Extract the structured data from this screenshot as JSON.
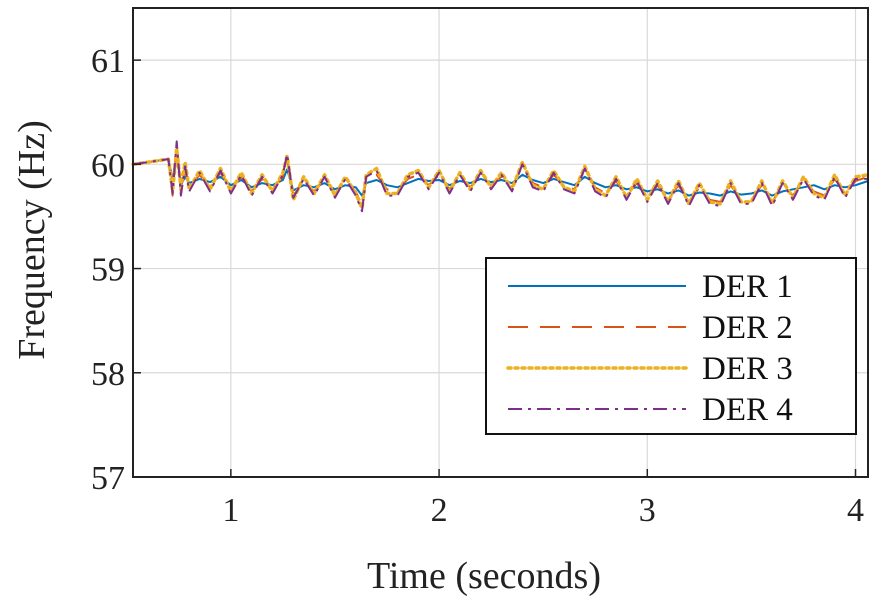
{
  "chart_data": {
    "type": "line",
    "title": "",
    "xlabel": "Time (seconds)",
    "ylabel": "Frequency (Hz)",
    "xlim": [
      0.53,
      4.06
    ],
    "ylim": [
      57,
      61.5
    ],
    "xticks": [
      1,
      2,
      3,
      4
    ],
    "yticks": [
      57,
      58,
      59,
      60,
      61
    ],
    "grid": true,
    "legend_position": "bottom-right",
    "series": [
      {
        "name": "DER 1",
        "color": "#0072BD",
        "dash": "solid",
        "x": [
          0.53,
          0.6,
          0.7,
          0.72,
          0.74,
          0.76,
          0.78,
          0.8,
          0.85,
          0.9,
          0.95,
          1.0,
          1.05,
          1.1,
          1.15,
          1.2,
          1.25,
          1.27,
          1.3,
          1.35,
          1.4,
          1.45,
          1.5,
          1.55,
          1.6,
          1.63,
          1.65,
          1.7,
          1.75,
          1.8,
          1.85,
          1.9,
          1.95,
          2.0,
          2.05,
          2.1,
          2.15,
          2.2,
          2.25,
          2.3,
          2.35,
          2.4,
          2.45,
          2.5,
          2.55,
          2.6,
          2.65,
          2.7,
          2.75,
          2.8,
          2.85,
          2.9,
          2.95,
          3.0,
          3.05,
          3.1,
          3.15,
          3.2,
          3.25,
          3.3,
          3.35,
          3.4,
          3.45,
          3.5,
          3.55,
          3.6,
          3.65,
          3.7,
          3.75,
          3.8,
          3.85,
          3.9,
          3.95,
          4.0,
          4.06
        ],
        "y": [
          60.0,
          60.02,
          60.05,
          59.85,
          60.12,
          59.8,
          59.88,
          59.82,
          59.86,
          59.83,
          59.88,
          59.8,
          59.85,
          59.78,
          59.82,
          59.8,
          59.85,
          59.95,
          59.75,
          59.8,
          59.78,
          59.82,
          59.76,
          59.8,
          59.78,
          59.7,
          59.82,
          59.85,
          59.8,
          59.78,
          59.82,
          59.86,
          59.84,
          59.85,
          59.8,
          59.84,
          59.82,
          59.86,
          59.83,
          59.85,
          59.82,
          59.9,
          59.85,
          59.82,
          59.86,
          59.83,
          59.8,
          59.88,
          59.82,
          59.78,
          59.8,
          59.76,
          59.78,
          59.74,
          59.76,
          59.72,
          59.75,
          59.7,
          59.73,
          59.72,
          59.7,
          59.74,
          59.71,
          59.72,
          59.75,
          59.7,
          59.74,
          59.76,
          59.78,
          59.8,
          59.76,
          59.8,
          59.78,
          59.8,
          59.84
        ]
      },
      {
        "name": "DER 2",
        "color": "#D95319",
        "dash": "dashed",
        "x": [
          0.53,
          0.6,
          0.7,
          0.72,
          0.74,
          0.76,
          0.78,
          0.8,
          0.85,
          0.9,
          0.95,
          1.0,
          1.05,
          1.1,
          1.15,
          1.2,
          1.25,
          1.27,
          1.3,
          1.35,
          1.4,
          1.45,
          1.5,
          1.55,
          1.6,
          1.63,
          1.65,
          1.7,
          1.75,
          1.8,
          1.85,
          1.9,
          1.95,
          2.0,
          2.05,
          2.1,
          2.15,
          2.2,
          2.25,
          2.3,
          2.35,
          2.4,
          2.45,
          2.5,
          2.55,
          2.6,
          2.65,
          2.7,
          2.75,
          2.8,
          2.85,
          2.9,
          2.95,
          3.0,
          3.05,
          3.1,
          3.15,
          3.2,
          3.25,
          3.3,
          3.35,
          3.4,
          3.45,
          3.5,
          3.55,
          3.6,
          3.65,
          3.7,
          3.75,
          3.8,
          3.85,
          3.9,
          3.95,
          4.0,
          4.06
        ],
        "y": [
          60.0,
          60.02,
          60.05,
          59.7,
          60.2,
          59.72,
          59.95,
          59.78,
          59.9,
          59.78,
          59.92,
          59.76,
          59.88,
          59.74,
          59.86,
          59.76,
          59.88,
          60.05,
          59.7,
          59.84,
          59.74,
          59.86,
          59.72,
          59.84,
          59.74,
          59.6,
          59.86,
          59.9,
          59.76,
          59.74,
          59.86,
          59.9,
          59.8,
          59.9,
          59.76,
          59.88,
          59.78,
          59.9,
          59.8,
          59.88,
          59.78,
          59.98,
          59.82,
          59.78,
          59.9,
          59.8,
          59.76,
          59.94,
          59.78,
          59.72,
          59.84,
          59.7,
          59.82,
          59.68,
          59.8,
          59.66,
          59.8,
          59.64,
          59.78,
          59.66,
          59.64,
          59.8,
          59.66,
          59.66,
          59.8,
          59.64,
          59.8,
          59.7,
          59.84,
          59.74,
          59.7,
          59.86,
          59.72,
          59.84,
          59.88
        ]
      },
      {
        "name": "DER 3",
        "color": "#EDB120",
        "dash": "dotted",
        "x": [
          0.53,
          0.6,
          0.7,
          0.72,
          0.74,
          0.76,
          0.78,
          0.8,
          0.85,
          0.9,
          0.95,
          1.0,
          1.05,
          1.1,
          1.15,
          1.2,
          1.25,
          1.27,
          1.3,
          1.35,
          1.4,
          1.45,
          1.5,
          1.55,
          1.6,
          1.63,
          1.65,
          1.7,
          1.75,
          1.8,
          1.85,
          1.9,
          1.95,
          2.0,
          2.05,
          2.1,
          2.15,
          2.2,
          2.25,
          2.3,
          2.35,
          2.4,
          2.45,
          2.5,
          2.55,
          2.6,
          2.65,
          2.7,
          2.75,
          2.8,
          2.85,
          2.9,
          2.95,
          3.0,
          3.05,
          3.1,
          3.15,
          3.2,
          3.25,
          3.3,
          3.35,
          3.4,
          3.45,
          3.5,
          3.55,
          3.6,
          3.65,
          3.7,
          3.75,
          3.8,
          3.85,
          3.9,
          3.95,
          4.0,
          4.06
        ],
        "y": [
          60.0,
          60.02,
          60.05,
          59.75,
          60.15,
          59.78,
          60.02,
          59.76,
          59.94,
          59.76,
          59.96,
          59.74,
          59.92,
          59.72,
          59.9,
          59.74,
          59.92,
          60.08,
          59.66,
          59.88,
          59.72,
          59.9,
          59.7,
          59.88,
          59.72,
          59.58,
          59.9,
          59.96,
          59.72,
          59.72,
          59.9,
          59.94,
          59.78,
          59.94,
          59.74,
          59.92,
          59.76,
          59.94,
          59.78,
          59.92,
          59.76,
          60.02,
          59.8,
          59.76,
          59.94,
          59.78,
          59.74,
          59.98,
          59.76,
          59.7,
          59.88,
          59.68,
          59.86,
          59.66,
          59.84,
          59.64,
          59.84,
          59.62,
          59.82,
          59.64,
          59.62,
          59.84,
          59.64,
          59.64,
          59.84,
          59.62,
          59.84,
          59.68,
          59.88,
          59.72,
          59.68,
          59.9,
          59.7,
          59.88,
          59.9
        ]
      },
      {
        "name": "DER 4",
        "color": "#7E2F8E",
        "dash": "dashdot",
        "x": [
          0.53,
          0.6,
          0.7,
          0.72,
          0.74,
          0.76,
          0.78,
          0.8,
          0.85,
          0.9,
          0.95,
          1.0,
          1.05,
          1.1,
          1.15,
          1.2,
          1.25,
          1.27,
          1.3,
          1.35,
          1.4,
          1.45,
          1.5,
          1.55,
          1.6,
          1.63,
          1.65,
          1.7,
          1.75,
          1.8,
          1.85,
          1.9,
          1.95,
          2.0,
          2.05,
          2.1,
          2.15,
          2.2,
          2.25,
          2.3,
          2.35,
          2.4,
          2.45,
          2.5,
          2.55,
          2.6,
          2.65,
          2.7,
          2.75,
          2.8,
          2.85,
          2.9,
          2.95,
          3.0,
          3.05,
          3.1,
          3.15,
          3.2,
          3.25,
          3.3,
          3.35,
          3.4,
          3.45,
          3.5,
          3.55,
          3.6,
          3.65,
          3.7,
          3.75,
          3.8,
          3.85,
          3.9,
          3.95,
          4.0,
          4.06
        ],
        "y": [
          60.0,
          60.02,
          60.05,
          59.72,
          60.22,
          59.7,
          59.98,
          59.74,
          59.92,
          59.74,
          59.94,
          59.72,
          59.9,
          59.7,
          59.88,
          59.72,
          59.9,
          60.1,
          59.68,
          59.86,
          59.7,
          59.88,
          59.68,
          59.86,
          59.7,
          59.55,
          59.88,
          59.94,
          59.7,
          59.7,
          59.88,
          59.92,
          59.76,
          59.92,
          59.72,
          59.9,
          59.74,
          59.92,
          59.76,
          59.9,
          59.74,
          60.0,
          59.78,
          59.74,
          59.92,
          59.76,
          59.72,
          59.96,
          59.74,
          59.68,
          59.86,
          59.66,
          59.84,
          59.64,
          59.82,
          59.62,
          59.82,
          59.6,
          59.8,
          59.62,
          59.6,
          59.82,
          59.62,
          59.62,
          59.82,
          59.6,
          59.82,
          59.66,
          59.86,
          59.7,
          59.66,
          59.88,
          59.68,
          59.86,
          59.86
        ]
      }
    ]
  }
}
